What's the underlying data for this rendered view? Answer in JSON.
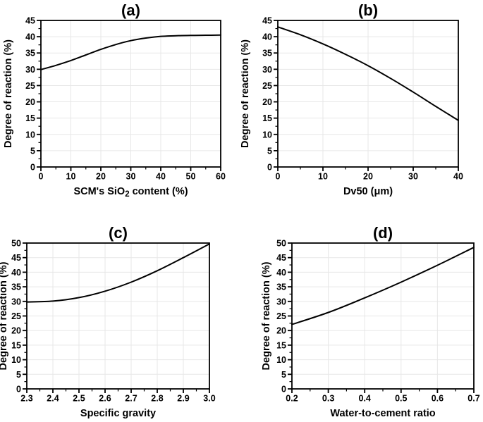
{
  "figure": {
    "background": "#ffffff",
    "text_color": "#000000",
    "axis_color": "#000000",
    "curve_color": "#000000",
    "grid_color": "#e7e7e7",
    "ylabel_shared": "Degree of reaction (%)"
  },
  "chart_data": [
    {
      "panel": "a",
      "type": "line",
      "title": "(a)",
      "xlabel": "SCM's SiO2 content (%)",
      "xlabel_parts": [
        {
          "text": "SCM's SiO"
        },
        {
          "text": "2",
          "sub": true
        },
        {
          "text": " content (%)"
        }
      ],
      "ylabel": "Degree of reaction (%)",
      "xlim": [
        0,
        60
      ],
      "ylim": [
        0,
        45
      ],
      "xticks": [
        0,
        10,
        20,
        30,
        40,
        50,
        60
      ],
      "xtick_labels": [
        "0",
        "10",
        "20",
        "30",
        "40",
        "50",
        "60"
      ],
      "yticks": [
        0,
        5,
        10,
        15,
        20,
        25,
        30,
        35,
        40,
        45
      ],
      "ytick_labels": [
        "0",
        "5",
        "10",
        "15",
        "20",
        "25",
        "30",
        "35",
        "40",
        "45"
      ],
      "grid": true,
      "legend": null,
      "series": [
        {
          "name": "degree-of-reaction-vs-sio2",
          "x": [
            0,
            5,
            10,
            15,
            20,
            25,
            30,
            35,
            40,
            45,
            50,
            55,
            60
          ],
          "y": [
            29.9,
            31.2,
            32.7,
            34.4,
            36.1,
            37.6,
            38.8,
            39.6,
            40.1,
            40.3,
            40.4,
            40.45,
            40.5
          ]
        }
      ]
    },
    {
      "panel": "b",
      "type": "line",
      "title": "(b)",
      "xlabel": "Dv50 (μm)",
      "xlabel_parts": [
        {
          "text": "Dv50 (μm)"
        }
      ],
      "ylabel": "Degree of reaction (%)",
      "xlim": [
        0,
        40
      ],
      "ylim": [
        0,
        45
      ],
      "xticks": [
        0,
        10,
        20,
        30,
        40
      ],
      "xtick_labels": [
        "0",
        "10",
        "20",
        "30",
        "40"
      ],
      "yticks": [
        0,
        5,
        10,
        15,
        20,
        25,
        30,
        35,
        40,
        45
      ],
      "ytick_labels": [
        "0",
        "5",
        "10",
        "15",
        "20",
        "25",
        "30",
        "35",
        "40",
        "45"
      ],
      "grid": true,
      "legend": null,
      "series": [
        {
          "name": "degree-of-reaction-vs-dv50",
          "x": [
            0,
            5,
            10,
            15,
            20,
            25,
            30,
            35,
            40
          ],
          "y": [
            43.0,
            40.6,
            37.8,
            34.6,
            31.1,
            27.2,
            23.0,
            18.6,
            14.3
          ]
        }
      ]
    },
    {
      "panel": "c",
      "type": "line",
      "title": "(c)",
      "xlabel": "Specific gravity",
      "xlabel_parts": [
        {
          "text": "Specific gravity"
        }
      ],
      "ylabel": "Degree of reaction (%)",
      "xlim": [
        2.3,
        3.0
      ],
      "ylim": [
        0,
        50
      ],
      "xticks": [
        2.3,
        2.4,
        2.5,
        2.6,
        2.7,
        2.8,
        2.9,
        3.0
      ],
      "xtick_labels": [
        "2.3",
        "2.4",
        "2.5",
        "2.6",
        "2.7",
        "2.8",
        "2.9",
        "3.0"
      ],
      "yticks": [
        0,
        5,
        10,
        15,
        20,
        25,
        30,
        35,
        40,
        45,
        50
      ],
      "ytick_labels": [
        "0",
        "5",
        "10",
        "15",
        "20",
        "25",
        "30",
        "35",
        "40",
        "45",
        "50"
      ],
      "grid": true,
      "legend": null,
      "series": [
        {
          "name": "degree-of-reaction-vs-specific-gravity",
          "x": [
            2.3,
            2.4,
            2.5,
            2.6,
            2.7,
            2.8,
            2.9,
            3.0
          ],
          "y": [
            29.8,
            30.1,
            31.3,
            33.5,
            36.6,
            40.5,
            45.0,
            49.7
          ]
        }
      ]
    },
    {
      "panel": "d",
      "type": "line",
      "title": "(d)",
      "xlabel": "Water-to-cement ratio",
      "xlabel_parts": [
        {
          "text": "Water-to-cement ratio"
        }
      ],
      "ylabel": "Degree of reaction (%)",
      "xlim": [
        0.2,
        0.7
      ],
      "ylim": [
        0,
        50
      ],
      "xticks": [
        0.2,
        0.3,
        0.4,
        0.5,
        0.6,
        0.7
      ],
      "xtick_labels": [
        "0.2",
        "0.3",
        "0.4",
        "0.5",
        "0.6",
        "0.7"
      ],
      "yticks": [
        0,
        5,
        10,
        15,
        20,
        25,
        30,
        35,
        40,
        45,
        50
      ],
      "ytick_labels": [
        "0",
        "5",
        "10",
        "15",
        "20",
        "25",
        "30",
        "35",
        "40",
        "45",
        "50"
      ],
      "grid": true,
      "legend": null,
      "series": [
        {
          "name": "degree-of-reaction-vs-wc-ratio",
          "x": [
            0.2,
            0.3,
            0.4,
            0.5,
            0.6,
            0.7
          ],
          "y": [
            22.1,
            26.2,
            31.2,
            36.6,
            42.4,
            48.5
          ]
        }
      ]
    }
  ]
}
